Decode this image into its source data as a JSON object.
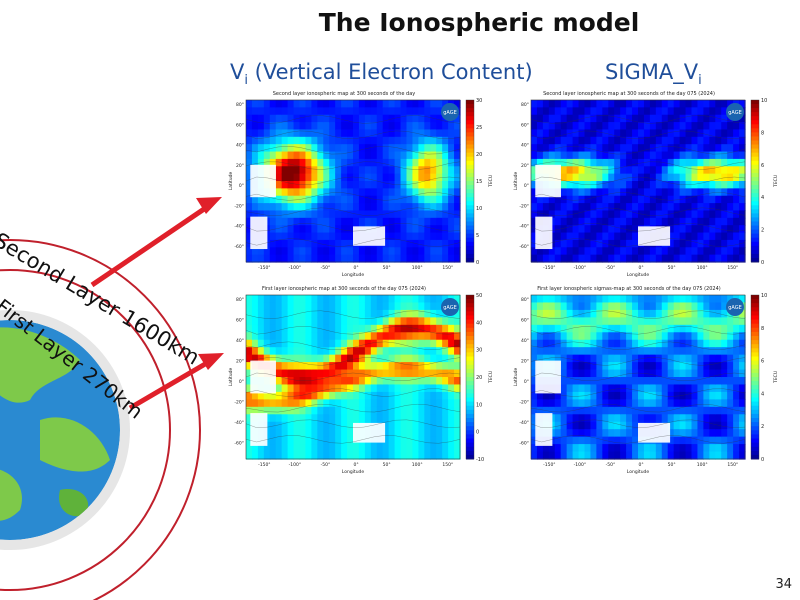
{
  "title": "The Ionospheric model",
  "left_column": {
    "label": "V",
    "sub": "i",
    "rest": " (Vertical Electron Content)"
  },
  "right_column": {
    "label": "SIGMA_V",
    "sub": "i"
  },
  "layers": {
    "second": "Second Layer 1600km",
    "first": "First Layer 270km"
  },
  "maps": {
    "tl": {
      "title": "Second layer ionospheric map at 300 seconds of the day",
      "cb_label": "TECU",
      "cb_ticks": [
        "30",
        "25",
        "20",
        "15",
        "10",
        "5",
        "0"
      ]
    },
    "tr": {
      "title": "Second layer ionospheric map at 300 seconds of the day 075 (2024)",
      "cb_label": "TECU",
      "cb_ticks": [
        "10",
        "8",
        "6",
        "4",
        "2",
        "0"
      ]
    },
    "bl": {
      "title": "First layer ionospheric map at 300 seconds of the day 075 (2024)",
      "cb_label": "TECU",
      "cb_ticks": [
        "50",
        "40",
        "30",
        "20",
        "10",
        "0",
        "-10"
      ]
    },
    "br": {
      "title": "First layer ionospheric sigmas-map at 300 seconds of the day 075 (2024)",
      "cb_label": "TECU",
      "cb_ticks": [
        "10",
        "8",
        "6",
        "4",
        "2",
        "0"
      ]
    }
  },
  "axis": {
    "xlabel": "Longitude",
    "ylabel": "Latitude",
    "xticks": [
      "-150°",
      "-100°",
      "-50°",
      "0°",
      "50°",
      "100°",
      "150°"
    ],
    "yticks": [
      "80°",
      "60°",
      "40°",
      "20°",
      "0°",
      "-20°",
      "-40°",
      "-60°"
    ]
  },
  "logo_text": "gAGE",
  "page_number": "34",
  "colors": {
    "title_blue": "#1f4e9a",
    "arrow_red": "#e0202a",
    "orbit_red": "#c0202c"
  }
}
